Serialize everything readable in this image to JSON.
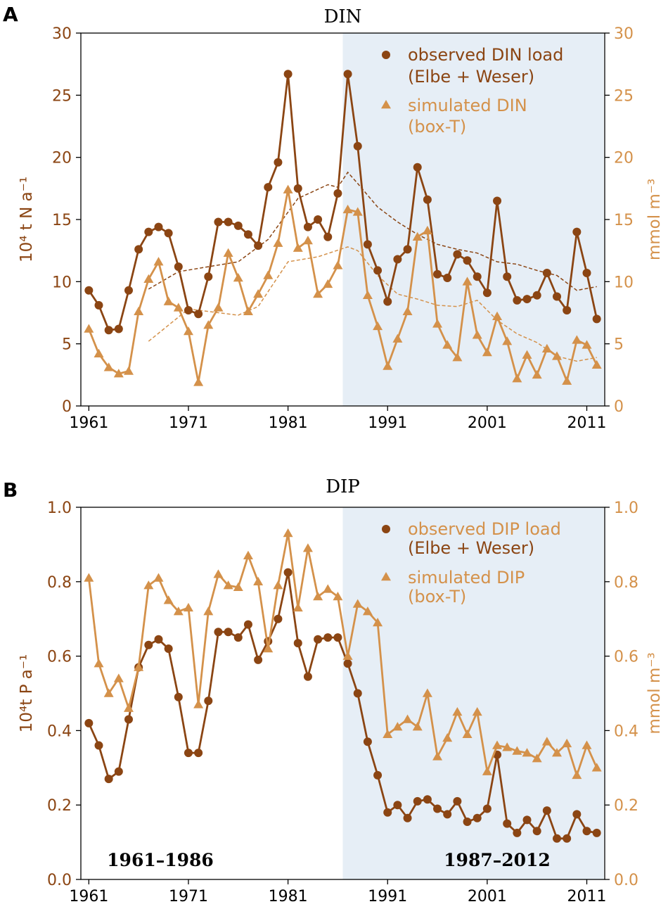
{
  "colors": {
    "observed": "#8B4513",
    "simulated": "#D4914A",
    "shade": "#E6EEF6",
    "axis": "#000000"
  },
  "chart_data": [
    {
      "type": "line",
      "panel_label": "A",
      "title": "DIN",
      "ylabel_left": "10⁴ t N a⁻¹",
      "ylabel_right": "mmol m⁻³",
      "xlim": [
        1960.2,
        2012.8
      ],
      "ylim": [
        0,
        30
      ],
      "x_ticks": [
        1961,
        1971,
        1981,
        1991,
        2001,
        2011
      ],
      "y_ticks": [
        0,
        5,
        10,
        15,
        20,
        25,
        30
      ],
      "y_tick_labels": [
        "0",
        "5",
        "10",
        "15",
        "20",
        "25",
        "30"
      ],
      "shaded_period": [
        1986.5,
        2012.7
      ],
      "period_labels": [],
      "legend": {
        "observed_lines": [
          "observed DIN load",
          "(Elbe + Weser)"
        ],
        "simulated_lines": [
          "simulated DIN",
          "(box-T)"
        ],
        "observed_second_line_color": "observed"
      },
      "series": [
        {
          "name": "observed DIN load (Elbe + Weser)",
          "style": "line-circle",
          "color": "observed",
          "x": [
            1961,
            1962,
            1963,
            1964,
            1965,
            1966,
            1967,
            1968,
            1969,
            1970,
            1971,
            1972,
            1973,
            1974,
            1975,
            1976,
            1977,
            1978,
            1979,
            1980,
            1981,
            1982,
            1983,
            1984,
            1985,
            1986,
            1987,
            1988,
            1989,
            1990,
            1991,
            1992,
            1993,
            1994,
            1995,
            1996,
            1997,
            1998,
            1999,
            2000,
            2001,
            2002,
            2003,
            2004,
            2005,
            2006,
            2007,
            2008,
            2009,
            2010,
            2011,
            2012
          ],
          "values": [
            9.3,
            8.1,
            6.1,
            6.2,
            9.3,
            12.6,
            14.0,
            14.4,
            13.9,
            11.2,
            7.7,
            7.4,
            10.4,
            14.8,
            14.8,
            14.5,
            13.8,
            12.9,
            17.6,
            19.6,
            26.7,
            17.5,
            14.4,
            15.0,
            13.6,
            17.1,
            26.7,
            20.9,
            13.0,
            10.9,
            8.4,
            11.8,
            12.6,
            19.2,
            16.6,
            10.6,
            10.3,
            12.2,
            11.7,
            10.4,
            9.1,
            16.5,
            10.4,
            8.5,
            8.6,
            8.9,
            10.7,
            8.8,
            7.7,
            14.0,
            10.7,
            7.0
          ]
        },
        {
          "name": "simulated DIN (box-T)",
          "style": "line-triangle",
          "color": "simulated",
          "x": [
            1961,
            1962,
            1963,
            1964,
            1965,
            1966,
            1967,
            1968,
            1969,
            1970,
            1971,
            1972,
            1973,
            1974,
            1975,
            1976,
            1977,
            1978,
            1979,
            1980,
            1981,
            1982,
            1983,
            1984,
            1985,
            1986,
            1987,
            1988,
            1989,
            1990,
            1991,
            1992,
            1993,
            1994,
            1995,
            1996,
            1997,
            1998,
            1999,
            2000,
            2001,
            2002,
            2003,
            2004,
            2005,
            2006,
            2007,
            2008,
            2009,
            2010,
            2011,
            2012
          ],
          "values": [
            6.2,
            4.2,
            3.1,
            2.6,
            2.8,
            7.6,
            10.2,
            11.6,
            8.4,
            7.9,
            6.0,
            1.9,
            6.5,
            7.9,
            12.3,
            10.3,
            7.6,
            9.0,
            10.5,
            13.1,
            17.4,
            12.7,
            13.3,
            9.0,
            9.8,
            11.3,
            15.8,
            15.6,
            8.9,
            6.4,
            3.2,
            5.4,
            7.6,
            13.6,
            14.1,
            6.6,
            4.9,
            3.9,
            10.0,
            5.7,
            4.3,
            7.2,
            5.2,
            2.2,
            4.1,
            2.5,
            4.6,
            4.0,
            2.0,
            5.3,
            4.9,
            3.3
          ]
        },
        {
          "name": "observed DIN running mean",
          "style": "dashed",
          "color": "observed",
          "x": [
            1967,
            1970,
            1973,
            1976,
            1979,
            1982,
            1985,
            1986,
            1987,
            1988,
            1990,
            1992,
            1994,
            1996,
            1998,
            2000,
            2002,
            2004,
            2006,
            2008,
            2010,
            2012
          ],
          "values": [
            9.4,
            10.8,
            11.2,
            11.6,
            13.4,
            16.7,
            17.8,
            17.6,
            18.8,
            17.9,
            16.0,
            14.8,
            13.8,
            13.0,
            12.6,
            12.3,
            11.6,
            11.4,
            10.9,
            10.5,
            9.3,
            9.6
          ]
        },
        {
          "name": "simulated DIN running mean",
          "style": "dashed",
          "color": "simulated",
          "x": [
            1967,
            1969,
            1971,
            1973,
            1976,
            1978,
            1981,
            1984,
            1987,
            1988,
            1990,
            1992,
            1994,
            1996,
            1998,
            2000,
            2002,
            2004,
            2006,
            2008,
            2010,
            2012
          ],
          "values": [
            5.2,
            6.5,
            7.8,
            7.6,
            7.3,
            8.0,
            11.6,
            12.0,
            12.8,
            12.5,
            10.5,
            9.0,
            8.6,
            8.1,
            8.0,
            8.5,
            6.9,
            5.8,
            5.1,
            4.0,
            3.6,
            3.9
          ]
        }
      ]
    },
    {
      "type": "line",
      "panel_label": "B",
      "title": "DIP",
      "ylabel_left": "10⁴t P a⁻¹",
      "ylabel_right": "mmol m⁻³",
      "xlim": [
        1960.2,
        2012.8
      ],
      "ylim": [
        0,
        1.0
      ],
      "x_ticks": [
        1961,
        1971,
        1981,
        1991,
        2001,
        2011
      ],
      "y_ticks": [
        0,
        0.2,
        0.4,
        0.6,
        0.8,
        1.0
      ],
      "y_tick_labels": [
        "0.0",
        "0.2",
        "0.4",
        "0.6",
        "0.8",
        "1.0"
      ],
      "shaded_period": [
        1986.5,
        2012.7
      ],
      "period_labels": [
        "1961–1986",
        "1987–2012"
      ],
      "legend": {
        "observed_lines": [
          "observed DIP load",
          "(Elbe + Weser)"
        ],
        "simulated_lines": [
          "simulated DIP",
          "(box-T)"
        ],
        "observed_first_line_color": "simulated"
      },
      "series": [
        {
          "name": "observed DIP load (Elbe + Weser)",
          "style": "line-circle",
          "color": "observed",
          "x": [
            1961,
            1962,
            1963,
            1964,
            1965,
            1966,
            1967,
            1968,
            1969,
            1970,
            1971,
            1972,
            1973,
            1974,
            1975,
            1976,
            1977,
            1978,
            1979,
            1980,
            1981,
            1982,
            1983,
            1984,
            1985,
            1986,
            1987,
            1988,
            1989,
            1990,
            1991,
            1992,
            1993,
            1994,
            1995,
            1996,
            1997,
            1998,
            1999,
            2000,
            2001,
            2002,
            2003,
            2004,
            2005,
            2006,
            2007,
            2008,
            2009,
            2010,
            2011,
            2012
          ],
          "values": [
            0.42,
            0.36,
            0.27,
            0.29,
            0.43,
            0.57,
            0.63,
            0.645,
            0.62,
            0.49,
            0.34,
            0.34,
            0.48,
            0.665,
            0.665,
            0.65,
            0.685,
            0.59,
            0.64,
            0.7,
            0.825,
            0.635,
            0.545,
            0.645,
            0.65,
            0.65,
            0.58,
            0.5,
            0.37,
            0.28,
            0.18,
            0.2,
            0.165,
            0.21,
            0.215,
            0.19,
            0.175,
            0.21,
            0.155,
            0.165,
            0.19,
            0.335,
            0.15,
            0.125,
            0.16,
            0.13,
            0.185,
            0.11,
            0.11,
            0.175,
            0.13,
            0.125
          ]
        },
        {
          "name": "simulated DIP (box-T)",
          "style": "line-triangle",
          "color": "simulated",
          "x": [
            1961,
            1962,
            1963,
            1964,
            1965,
            1966,
            1967,
            1968,
            1969,
            1970,
            1971,
            1972,
            1973,
            1974,
            1975,
            1976,
            1977,
            1978,
            1979,
            1980,
            1981,
            1982,
            1983,
            1984,
            1985,
            1986,
            1987,
            1988,
            1989,
            1990,
            1991,
            1992,
            1993,
            1994,
            1995,
            1996,
            1997,
            1998,
            1999,
            2000,
            2001,
            2002,
            2003,
            2004,
            2005,
            2006,
            2007,
            2008,
            2009,
            2010,
            2011,
            2012
          ],
          "values": [
            0.81,
            0.58,
            0.5,
            0.54,
            0.46,
            0.57,
            0.79,
            0.81,
            0.75,
            0.72,
            0.73,
            0.47,
            0.72,
            0.82,
            0.79,
            0.785,
            0.87,
            0.8,
            0.62,
            0.79,
            0.93,
            0.73,
            0.89,
            0.76,
            0.78,
            0.76,
            0.6,
            0.74,
            0.72,
            0.69,
            0.39,
            0.41,
            0.43,
            0.41,
            0.5,
            0.33,
            0.38,
            0.45,
            0.39,
            0.45,
            0.29,
            0.36,
            0.355,
            0.345,
            0.34,
            0.325,
            0.37,
            0.34,
            0.365,
            0.28,
            0.36,
            0.3
          ]
        }
      ]
    }
  ]
}
